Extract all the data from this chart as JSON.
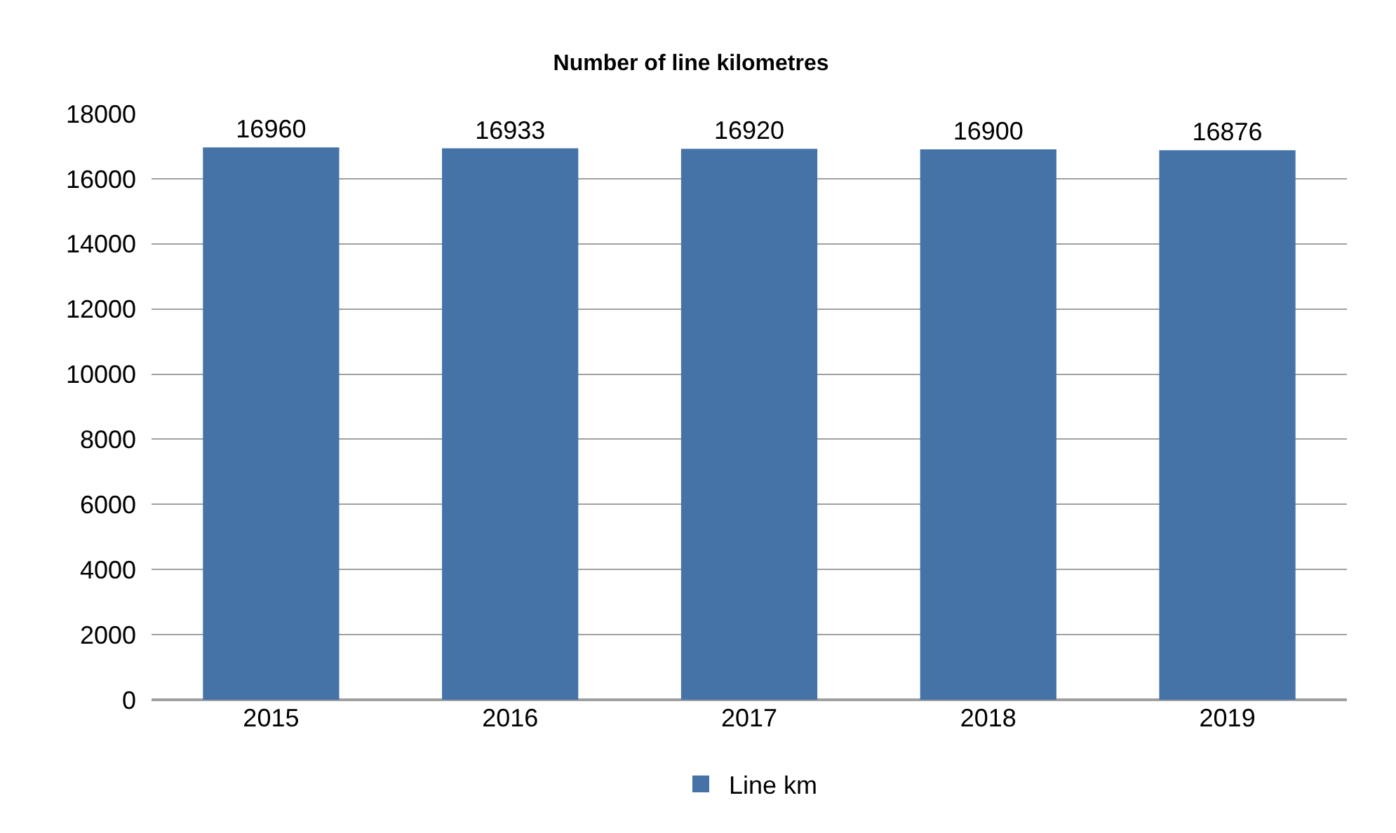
{
  "chart_data": {
    "type": "bar",
    "title": "Number of line kilometres",
    "categories": [
      "2015",
      "2016",
      "2017",
      "2018",
      "2019"
    ],
    "series": [
      {
        "name": "Line km",
        "color": "#4573a7",
        "values": [
          16960,
          16933,
          16920,
          16900,
          16876
        ]
      }
    ],
    "ylim": [
      0,
      18000
    ],
    "yticks": [
      0,
      2000,
      4000,
      6000,
      8000,
      10000,
      12000,
      14000,
      16000,
      18000
    ],
    "grid": "y",
    "legend": "bottom",
    "data_labels": true
  }
}
